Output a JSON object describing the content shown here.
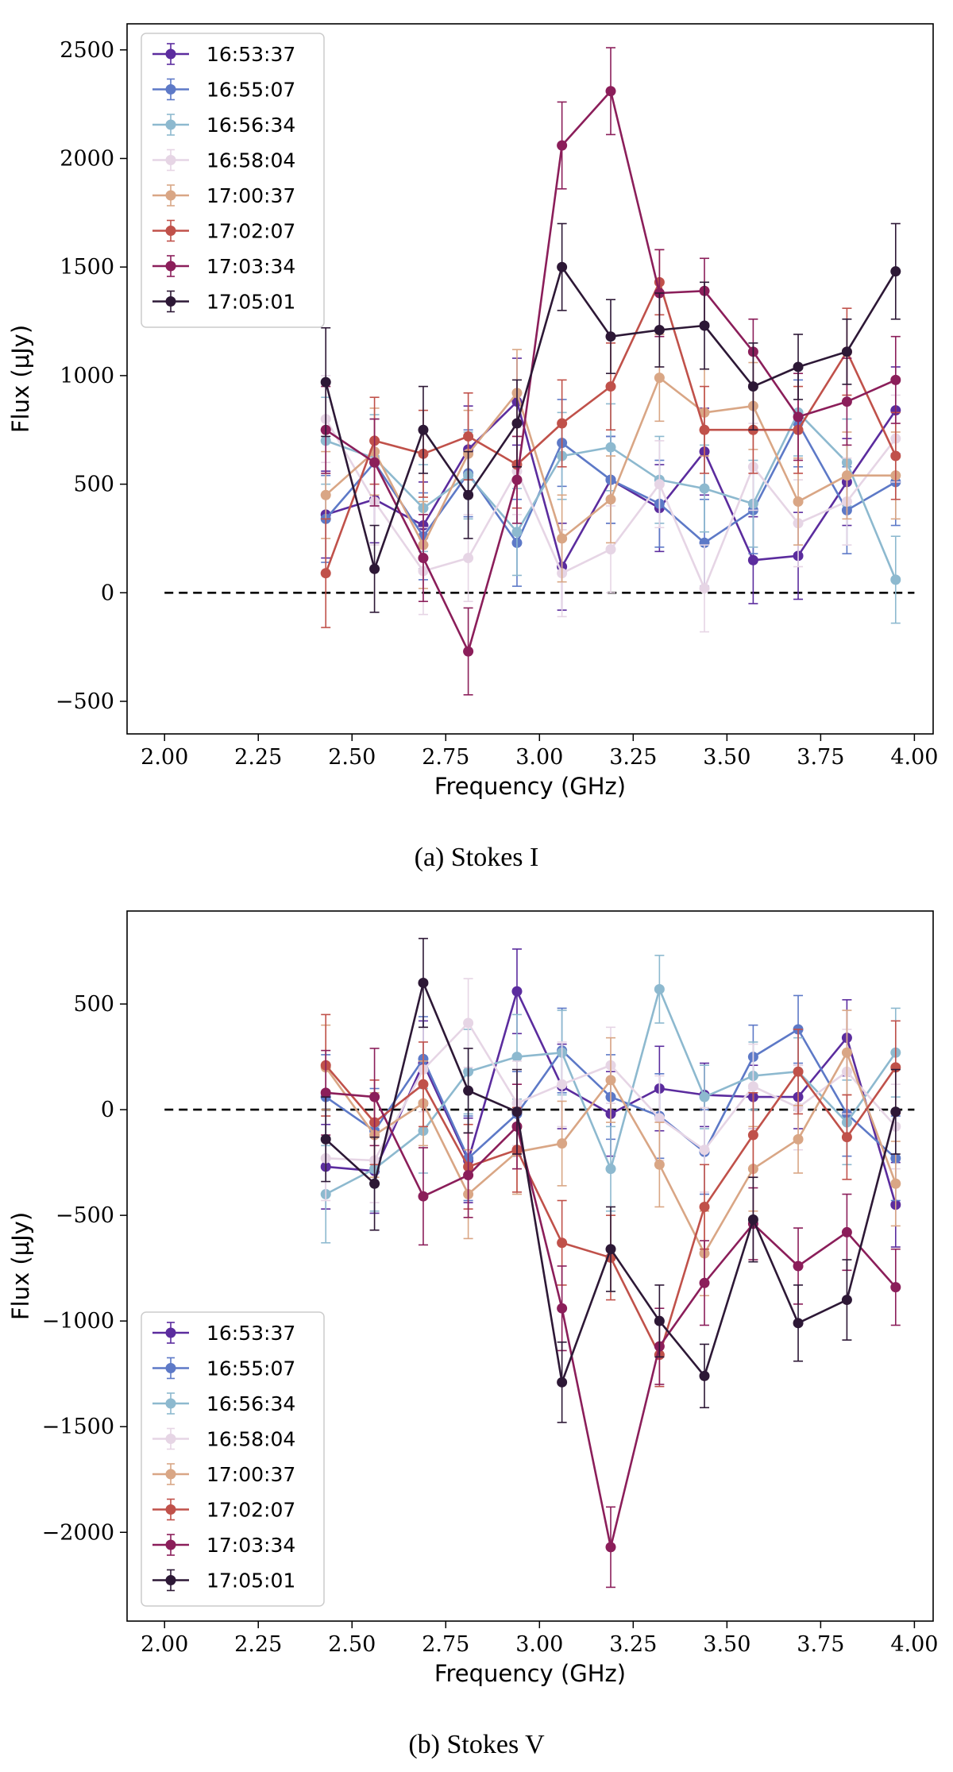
{
  "chart_data": [
    {
      "type": "line",
      "caption": "(a) Stokes I",
      "xlabel": "Frequency (GHz)",
      "ylabel": "Flux (μJy)",
      "xlim": [
        1.9,
        4.05
      ],
      "ylim": [
        -650,
        2620
      ],
      "xticks": [
        2.0,
        2.25,
        2.5,
        2.75,
        3.0,
        3.25,
        3.5,
        3.75,
        4.0
      ],
      "xtick_labels": [
        "2.00",
        "2.25",
        "2.50",
        "2.75",
        "3.00",
        "3.25",
        "3.50",
        "3.75",
        "4.00"
      ],
      "yticks": [
        -500,
        0,
        500,
        1000,
        1500,
        2000,
        2500
      ],
      "ytick_labels": [
        "−500",
        "0",
        "500",
        "1000",
        "1500",
        "2000",
        "2500"
      ],
      "reference_line": 0,
      "legend_position": "upper left",
      "x": [
        2.43,
        2.56,
        2.69,
        2.81,
        2.94,
        3.06,
        3.19,
        3.32,
        3.44,
        3.57,
        3.69,
        3.82,
        3.95
      ],
      "series": [
        {
          "name": "16:53:37",
          "color": "#5b2c9e",
          "values": [
            360,
            430,
            310,
            660,
            880,
            120,
            520,
            390,
            650,
            150,
            170,
            510,
            840
          ],
          "errors": [
            200,
            200,
            200,
            200,
            200,
            200,
            200,
            200,
            200,
            200,
            200,
            200,
            200
          ]
        },
        {
          "name": "16:55:07",
          "color": "#5d79c7",
          "values": [
            340,
            600,
            260,
            550,
            230,
            690,
            520,
            410,
            230,
            380,
            780,
            380,
            510
          ],
          "errors": [
            200,
            200,
            200,
            200,
            200,
            200,
            200,
            200,
            200,
            200,
            200,
            200,
            200
          ]
        },
        {
          "name": "16:56:34",
          "color": "#8db9cf",
          "values": [
            700,
            620,
            390,
            540,
            280,
            630,
            670,
            520,
            480,
            410,
            830,
            600,
            60
          ],
          "errors": [
            200,
            200,
            200,
            200,
            200,
            200,
            200,
            200,
            200,
            200,
            200,
            200,
            200
          ]
        },
        {
          "name": "16:58:04",
          "color": "#e6d5e5",
          "values": [
            800,
            420,
            100,
            160,
            560,
            90,
            200,
            500,
            20,
            580,
            320,
            420,
            710
          ],
          "errors": [
            200,
            200,
            200,
            200,
            200,
            200,
            200,
            200,
            200,
            200,
            200,
            200,
            200
          ]
        },
        {
          "name": "17:00:37",
          "color": "#d9a685",
          "values": [
            450,
            650,
            220,
            640,
            920,
            250,
            430,
            990,
            830,
            860,
            420,
            540,
            540
          ],
          "errors": [
            200,
            200,
            200,
            200,
            200,
            200,
            200,
            200,
            200,
            200,
            200,
            200,
            200
          ]
        },
        {
          "name": "17:02:07",
          "color": "#c0514a",
          "values": [
            90,
            700,
            640,
            720,
            590,
            780,
            950,
            1430,
            750,
            750,
            750,
            1110,
            630
          ],
          "errors": [
            250,
            200,
            200,
            200,
            200,
            200,
            200,
            150,
            200,
            200,
            200,
            200,
            200
          ]
        },
        {
          "name": "17:03:34",
          "color": "#8b1e5a",
          "values": [
            750,
            600,
            160,
            -270,
            520,
            2060,
            2310,
            1380,
            1390,
            1110,
            810,
            880,
            980
          ],
          "errors": [
            200,
            200,
            200,
            200,
            200,
            200,
            200,
            200,
            150,
            150,
            200,
            200,
            200
          ]
        },
        {
          "name": "17:05:01",
          "color": "#2d1836",
          "values": [
            970,
            110,
            750,
            450,
            780,
            1500,
            1180,
            1210,
            1230,
            950,
            1040,
            1110,
            1480
          ],
          "errors": [
            250,
            200,
            200,
            200,
            200,
            200,
            170,
            170,
            200,
            200,
            150,
            150,
            220
          ]
        }
      ]
    },
    {
      "type": "line",
      "caption": "(b) Stokes V",
      "xlabel": "Frequency (GHz)",
      "ylabel": "Flux (μJy)",
      "xlim": [
        1.9,
        4.05
      ],
      "ylim": [
        -2420,
        940
      ],
      "xticks": [
        2.0,
        2.25,
        2.5,
        2.75,
        3.0,
        3.25,
        3.5,
        3.75,
        4.0
      ],
      "xtick_labels": [
        "2.00",
        "2.25",
        "2.50",
        "2.75",
        "3.00",
        "3.25",
        "3.50",
        "3.75",
        "4.00"
      ],
      "yticks": [
        -2000,
        -1500,
        -1000,
        -500,
        0,
        500
      ],
      "ytick_labels": [
        "−2000",
        "−1500",
        "−1000",
        "−500",
        "0",
        "500"
      ],
      "reference_line": 0,
      "legend_position": "lower left",
      "x": [
        2.43,
        2.56,
        2.69,
        2.81,
        2.94,
        3.06,
        3.19,
        3.32,
        3.44,
        3.57,
        3.69,
        3.82,
        3.95
      ],
      "series": [
        {
          "name": "16:53:37",
          "color": "#5b2c9e",
          "values": [
            -270,
            -290,
            220,
            -240,
            560,
            110,
            -20,
            100,
            70,
            60,
            60,
            340,
            -450
          ],
          "errors": [
            200,
            200,
            200,
            200,
            200,
            200,
            200,
            200,
            150,
            150,
            150,
            180,
            200
          ]
        },
        {
          "name": "16:55:07",
          "color": "#5d79c7",
          "values": [
            60,
            -100,
            240,
            -230,
            -20,
            280,
            60,
            -30,
            -200,
            250,
            380,
            -20,
            -230
          ],
          "errors": [
            200,
            200,
            200,
            200,
            200,
            200,
            200,
            200,
            200,
            150,
            160,
            200,
            200
          ]
        },
        {
          "name": "16:56:34",
          "color": "#8db9cf",
          "values": [
            -400,
            -280,
            -100,
            180,
            250,
            270,
            -280,
            570,
            60,
            160,
            180,
            -60,
            270
          ],
          "errors": [
            230,
            200,
            200,
            200,
            200,
            200,
            200,
            160,
            150,
            160,
            160,
            200,
            210
          ]
        },
        {
          "name": "16:58:04",
          "color": "#e6d5e5",
          "values": [
            -230,
            -240,
            190,
            410,
            30,
            120,
            210,
            -40,
            -190,
            110,
            10,
            180,
            -80
          ],
          "errors": [
            200,
            200,
            200,
            210,
            200,
            200,
            180,
            200,
            200,
            200,
            200,
            200,
            200
          ]
        },
        {
          "name": "17:00:37",
          "color": "#d9a685",
          "values": [
            200,
            -120,
            30,
            -400,
            -200,
            -160,
            140,
            -260,
            -680,
            -280,
            -140,
            270,
            -350
          ],
          "errors": [
            200,
            200,
            200,
            210,
            200,
            200,
            200,
            200,
            200,
            200,
            160,
            200,
            200
          ]
        },
        {
          "name": "17:02:07",
          "color": "#c0514a",
          "values": [
            210,
            -60,
            120,
            -270,
            -190,
            -630,
            -700,
            -1160,
            -460,
            -120,
            180,
            -130,
            200
          ],
          "errors": [
            240,
            200,
            200,
            200,
            200,
            200,
            200,
            150,
            200,
            200,
            200,
            200,
            220
          ]
        },
        {
          "name": "17:03:34",
          "color": "#8b1e5a",
          "values": [
            80,
            60,
            -410,
            -310,
            -80,
            -940,
            -2070,
            -1120,
            -820,
            -540,
            -740,
            -580,
            -840
          ],
          "errors": [
            200,
            230,
            230,
            200,
            200,
            200,
            190,
            180,
            200,
            170,
            180,
            180,
            180
          ]
        },
        {
          "name": "17:05:01",
          "color": "#2d1836",
          "values": [
            -140,
            -350,
            600,
            90,
            -10,
            -1290,
            -660,
            -1000,
            -1260,
            -520,
            -1010,
            -900,
            -10
          ],
          "errors": [
            200,
            220,
            210,
            200,
            200,
            190,
            200,
            170,
            150,
            200,
            180,
            190,
            200
          ]
        }
      ]
    }
  ]
}
